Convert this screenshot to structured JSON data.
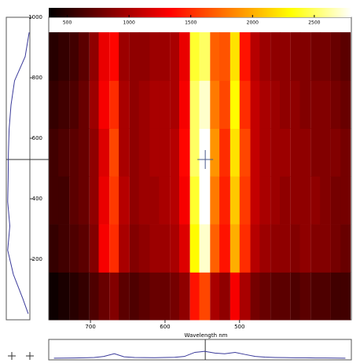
{
  "chart_data": {
    "type": "heatmap",
    "x_label": "Wavelength nm",
    "x": [
      749,
      736,
      722,
      709,
      695,
      682,
      668,
      655,
      641,
      628,
      614,
      601,
      587,
      574,
      560,
      547,
      533,
      520,
      506,
      493,
      479,
      466,
      452,
      439,
      425,
      412,
      398,
      385,
      371,
      358
    ],
    "y": [
      79,
      237,
      396,
      554,
      712,
      871
    ],
    "z": [
      [
        400,
        450,
        500,
        550,
        650,
        750,
        850,
        700,
        650,
        700,
        750,
        750,
        800,
        900,
        1400,
        1600,
        1000,
        900,
        1300,
        1000,
        800,
        750,
        700,
        700,
        650,
        700,
        650,
        650,
        600,
        600
      ],
      [
        550,
        600,
        650,
        700,
        850,
        1300,
        1500,
        1000,
        850,
        900,
        950,
        950,
        1000,
        1200,
        2300,
        2700,
        1700,
        1400,
        2000,
        1500,
        1050,
        950,
        900,
        900,
        850,
        900,
        850,
        850,
        800,
        750
      ],
      [
        600,
        600,
        700,
        750,
        900,
        1250,
        1550,
        1050,
        900,
        950,
        950,
        1000,
        1050,
        1300,
        2400,
        2800,
        1800,
        1450,
        2100,
        1550,
        1100,
        1000,
        950,
        900,
        900,
        900,
        900,
        850,
        800,
        800
      ],
      [
        600,
        650,
        700,
        750,
        900,
        1200,
        1600,
        1000,
        900,
        950,
        1000,
        1000,
        1050,
        1350,
        2500,
        2800,
        1900,
        1500,
        2200,
        1600,
        1100,
        1000,
        950,
        950,
        900,
        900,
        850,
        850,
        850,
        800
      ],
      [
        550,
        600,
        650,
        750,
        950,
        1300,
        1500,
        1000,
        900,
        950,
        1000,
        1000,
        1000,
        1300,
        2500,
        2700,
        1800,
        1600,
        2300,
        1500,
        1100,
        1000,
        950,
        900,
        900,
        850,
        850,
        850,
        800,
        750
      ],
      [
        500,
        550,
        600,
        700,
        900,
        1250,
        1350,
        950,
        900,
        900,
        950,
        950,
        1000,
        1250,
        2400,
        2500,
        1700,
        1650,
        2200,
        1400,
        1050,
        950,
        900,
        900,
        850,
        850,
        800,
        800,
        750,
        700
      ]
    ],
    "xlim": [
      756,
      350
    ],
    "xticks": [
      700,
      600,
      500
    ],
    "ylim": [
      0,
      1000
    ],
    "yticks": [
      200,
      400,
      600,
      800,
      1000
    ],
    "clim": [
      350,
      2800
    ],
    "cticks": [
      500,
      1000,
      1500,
      2000,
      2500
    ],
    "cursor": {
      "x": 546,
      "y": 530
    },
    "x_profile": [
      250,
      260,
      280,
      300,
      350,
      500,
      900,
      450,
      350,
      330,
      320,
      340,
      380,
      500,
      1100,
      1250,
      1000,
      900,
      1100,
      800,
      500,
      400,
      350,
      330,
      300,
      300,
      280,
      270,
      260,
      250
    ],
    "x_profile_lim": [
      0,
      3000
    ],
    "y_profile": {
      "y": [
        950,
        870,
        790,
        710,
        630,
        550,
        470,
        390,
        310,
        230,
        150,
        70,
        20
      ],
      "values": [
        970,
        800,
        350,
        200,
        120,
        90,
        80,
        60,
        150,
        60,
        300,
        700,
        930
      ]
    },
    "y_profile_lim": [
      0,
      1000
    ],
    "profile_color": "#3a3a9a"
  }
}
